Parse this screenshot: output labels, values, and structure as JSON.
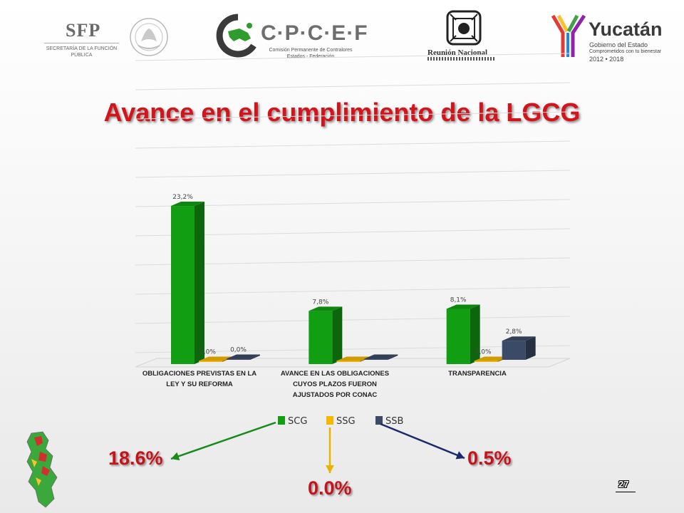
{
  "logos": {
    "sfp": {
      "text": "SFP",
      "subtitle": "SECRETARÍA DE LA FUNCIÓN PÚBLICA"
    },
    "seal": {
      "name": "estados-unidos-mexicanos-seal"
    },
    "cpcef": {
      "text": "C·P·C·E·F",
      "subtitle": "Comisión Permanente de Contralores Estados - Federación"
    },
    "reunion": {
      "text": "Reunión Nacional"
    },
    "yucatan": {
      "text": "Yucatán",
      "subtitle": "Gobierno del Estado",
      "tagline": "Comprometidos con tu bienestar",
      "years": "2012 • 2018"
    }
  },
  "title": "Avance en el cumplimiento de la LGCG",
  "chart_data": {
    "type": "bar",
    "categories": [
      "OBLIGACIONES PREVISTAS EN LA LEY Y SU REFORMA",
      "AVANCE EN LAS OBLIGACIONES CUYOS PLAZOS FUERON AJUSTADOS POR CONAC",
      "TRANSPARENCIA"
    ],
    "category_lines": [
      [
        "OBLIGACIONES PREVISTAS EN LA",
        "LEY Y SU REFORMA"
      ],
      [
        "AVANCE EN LAS OBLIGACIONES",
        "CUYOS PLAZOS FUERON",
        "AJUSTADOS POR CONAC"
      ],
      [
        "TRANSPARENCIA"
      ]
    ],
    "series": [
      {
        "name": "SCG",
        "values": [
          23.2,
          7.8,
          8.1
        ],
        "labels": [
          "23,2%",
          "7,8%",
          "8,1%"
        ],
        "color": "#129e12"
      },
      {
        "name": "SSG",
        "values": [
          0.0,
          0.0,
          0.0
        ],
        "labels": [
          "0,0%",
          "",
          "0,0%"
        ],
        "color": "#f5b800"
      },
      {
        "name": "SSB",
        "values": [
          0.0,
          0.0,
          2.8
        ],
        "labels": [
          "0,0%",
          "",
          "2,8%"
        ],
        "color": "#3b4a66"
      }
    ],
    "ylim": [
      0,
      30
    ],
    "grid": true,
    "legend": "bottom",
    "three_d": true
  },
  "callouts": {
    "scg": {
      "value": "18.6%",
      "color": "#1a8a1a"
    },
    "ssg": {
      "value": "0.0%",
      "color": "#e8b400"
    },
    "ssb": {
      "value": "0.5%",
      "color": "#1c2a6b"
    }
  },
  "page_number": "27"
}
